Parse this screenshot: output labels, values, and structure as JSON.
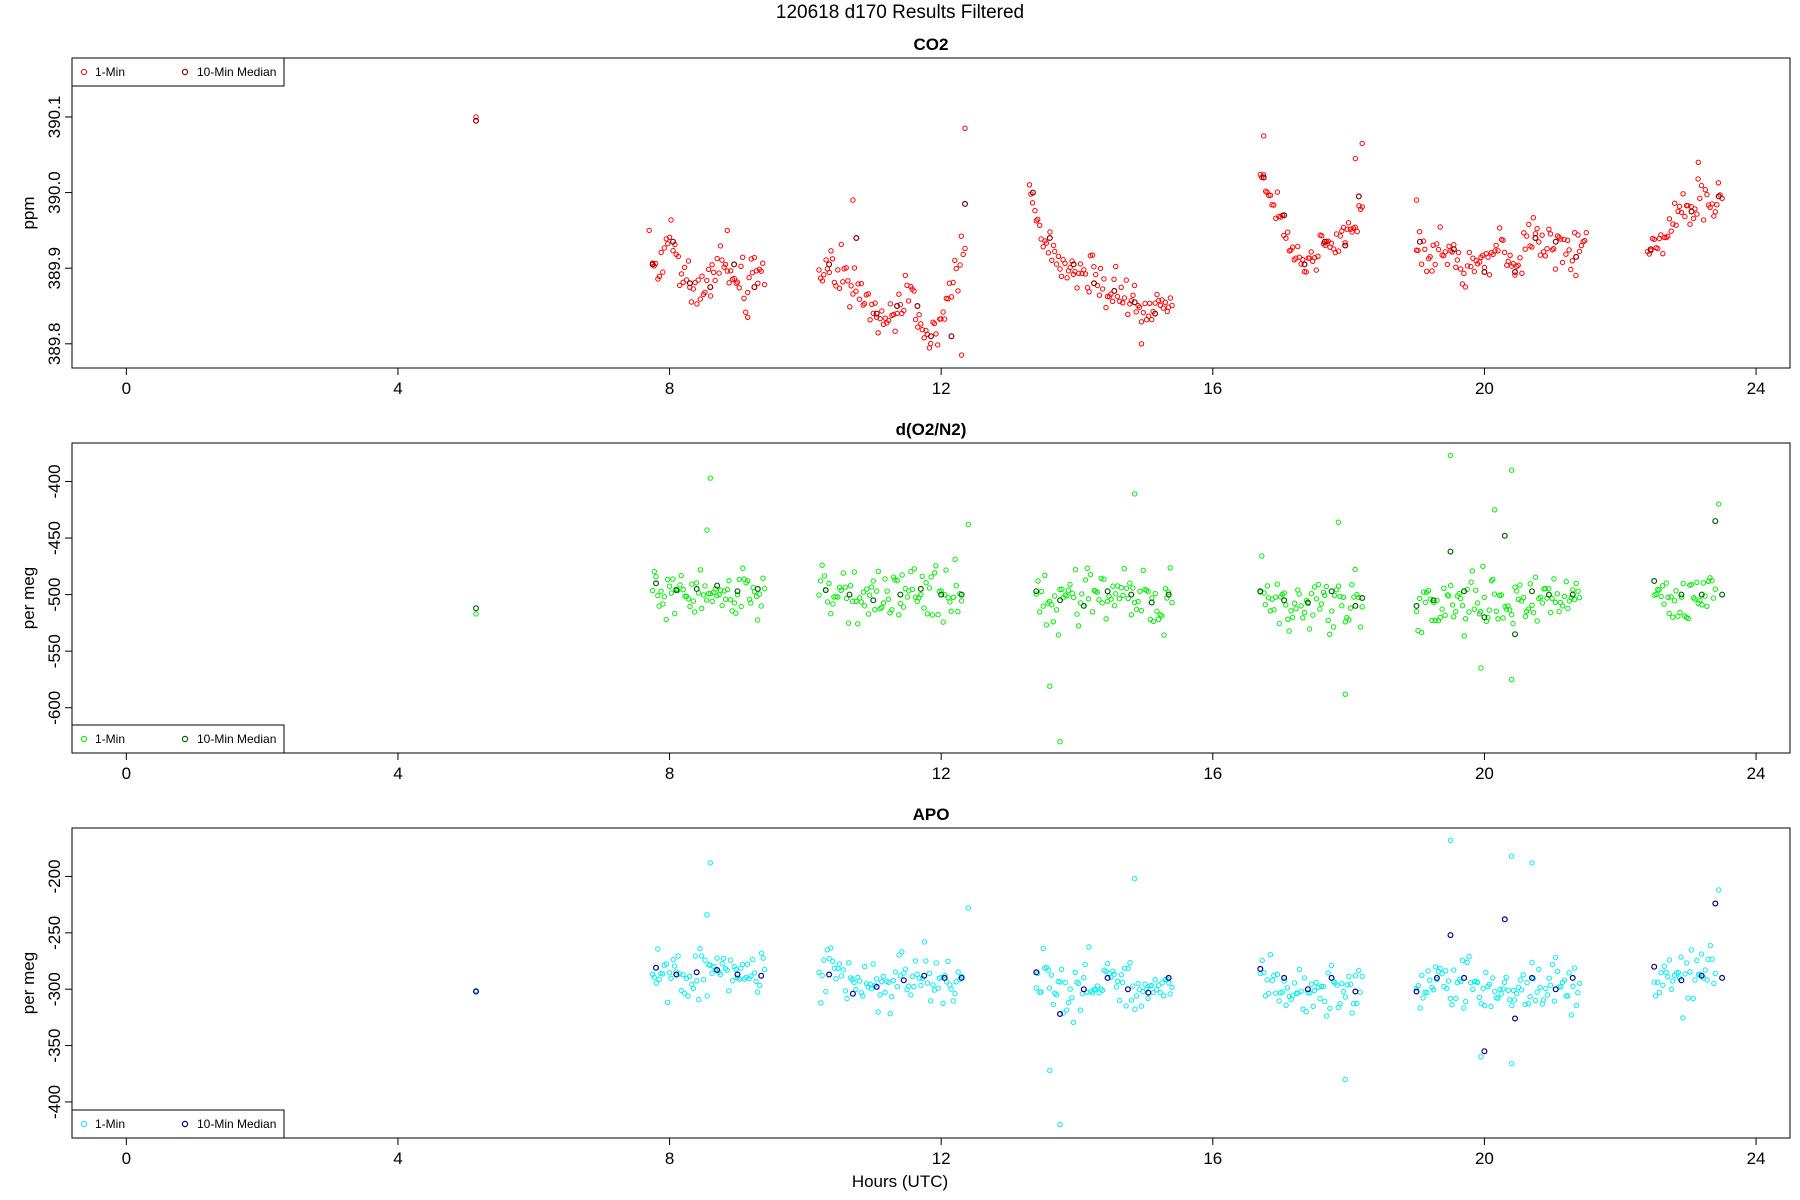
{
  "figure": {
    "title": "120618   d170   Results Filtered",
    "xlabel": "Hours (UTC)"
  },
  "chart_data": [
    {
      "type": "scatter",
      "title": "CO2",
      "xlabel": "",
      "ylabel": "ppm",
      "xlim": [
        -0.8,
        24.5
      ],
      "ylim": [
        389.768,
        390.178
      ],
      "xticks": [
        0,
        4,
        8,
        12,
        16,
        20,
        24
      ],
      "yticks": [
        389.8,
        389.9,
        390.0,
        390.1
      ],
      "ytick_labels": [
        "389.8",
        "389.9",
        "390.0",
        "390.1"
      ],
      "legend": {
        "position": "top-left",
        "entries": [
          "1-Min",
          "10-Min Median"
        ]
      },
      "grid": false,
      "colors": {
        "one_min": "#ff0000",
        "median": "#8b0000"
      },
      "anchors": [
        [
          5.15,
          390.095
        ],
        [
          7.75,
          389.905
        ],
        [
          7.85,
          389.89
        ],
        [
          8.0,
          389.94
        ],
        [
          8.2,
          389.885
        ],
        [
          8.35,
          389.87
        ],
        [
          8.5,
          389.875
        ],
        [
          8.7,
          389.91
        ],
        [
          8.85,
          389.9
        ],
        [
          9.0,
          389.885
        ],
        [
          9.15,
          389.87
        ],
        [
          9.3,
          389.895
        ],
        [
          9.4,
          389.88
        ],
        [
          10.2,
          389.9
        ],
        [
          10.4,
          389.905
        ],
        [
          10.7,
          389.875
        ],
        [
          10.85,
          389.85
        ],
        [
          11.0,
          389.84
        ],
        [
          11.2,
          389.835
        ],
        [
          11.4,
          389.85
        ],
        [
          11.6,
          389.86
        ],
        [
          11.75,
          389.815
        ],
        [
          11.9,
          389.83
        ],
        [
          12.05,
          389.84
        ],
        [
          12.2,
          389.9
        ],
        [
          12.35,
          389.92
        ],
        [
          13.3,
          390.01
        ],
        [
          13.4,
          389.97
        ],
        [
          13.55,
          389.935
        ],
        [
          13.7,
          389.915
        ],
        [
          13.9,
          389.905
        ],
        [
          14.1,
          389.9
        ],
        [
          14.3,
          389.885
        ],
        [
          14.5,
          389.87
        ],
        [
          14.7,
          389.86
        ],
        [
          14.9,
          389.85
        ],
        [
          15.1,
          389.845
        ],
        [
          15.3,
          389.855
        ],
        [
          15.4,
          389.86
        ],
        [
          16.7,
          390.02
        ],
        [
          16.85,
          390.0
        ],
        [
          17.0,
          389.97
        ],
        [
          17.15,
          389.93
        ],
        [
          17.3,
          389.905
        ],
        [
          17.5,
          389.915
        ],
        [
          17.7,
          389.93
        ],
        [
          17.9,
          389.935
        ],
        [
          18.05,
          389.935
        ],
        [
          18.2,
          389.99
        ],
        [
          19.0,
          389.935
        ],
        [
          19.2,
          389.915
        ],
        [
          19.4,
          389.925
        ],
        [
          19.6,
          389.91
        ],
        [
          19.8,
          389.9
        ],
        [
          20.0,
          389.905
        ],
        [
          20.2,
          389.93
        ],
        [
          20.4,
          389.9
        ],
        [
          20.6,
          389.925
        ],
        [
          20.8,
          389.935
        ],
        [
          21.0,
          389.93
        ],
        [
          21.2,
          389.92
        ],
        [
          21.4,
          389.92
        ],
        [
          21.5,
          389.935
        ],
        [
          22.4,
          389.925
        ],
        [
          22.7,
          389.95
        ],
        [
          22.9,
          389.975
        ],
        [
          23.1,
          389.99
        ],
        [
          23.3,
          389.985
        ],
        [
          23.5,
          389.995
        ]
      ],
      "outliers": [
        [
          18.2,
          390.065
        ],
        [
          12.35,
          390.085
        ],
        [
          12.3,
          389.785
        ],
        [
          14.95,
          389.8
        ],
        [
          16.75,
          390.075
        ],
        [
          7.7,
          389.95
        ],
        [
          10.7,
          389.99
        ],
        [
          18.1,
          390.045
        ],
        [
          23.15,
          390.04
        ],
        [
          19.0,
          389.99
        ],
        [
          8.85,
          389.95
        ],
        [
          9.15,
          389.835
        ]
      ],
      "medians": [
        [
          5.15,
          390.095
        ],
        [
          7.75,
          389.905
        ],
        [
          8.05,
          389.935
        ],
        [
          8.3,
          389.88
        ],
        [
          8.6,
          389.875
        ],
        [
          8.95,
          389.905
        ],
        [
          9.25,
          389.875
        ],
        [
          10.35,
          389.905
        ],
        [
          10.75,
          389.94
        ],
        [
          11.05,
          389.84
        ],
        [
          11.35,
          389.85
        ],
        [
          11.65,
          389.85
        ],
        [
          11.85,
          389.81
        ],
        [
          12.15,
          389.81
        ],
        [
          12.35,
          389.985
        ],
        [
          13.35,
          390.0
        ],
        [
          13.6,
          389.94
        ],
        [
          13.95,
          389.905
        ],
        [
          14.25,
          389.88
        ],
        [
          14.55,
          389.87
        ],
        [
          14.85,
          389.855
        ],
        [
          15.15,
          389.84
        ],
        [
          16.75,
          390.02
        ],
        [
          17.05,
          389.97
        ],
        [
          17.35,
          389.905
        ],
        [
          17.65,
          389.935
        ],
        [
          17.95,
          389.93
        ],
        [
          18.15,
          389.995
        ],
        [
          19.05,
          389.935
        ],
        [
          19.55,
          389.925
        ],
        [
          20.0,
          389.895
        ],
        [
          20.45,
          389.895
        ],
        [
          20.75,
          389.94
        ],
        [
          21.05,
          389.935
        ],
        [
          21.35,
          389.915
        ],
        [
          22.45,
          389.925
        ],
        [
          23.05,
          389.975
        ],
        [
          23.45,
          389.995
        ]
      ]
    },
    {
      "type": "scatter",
      "title": "d(O2/N2)",
      "xlabel": "",
      "ylabel": "per meg",
      "xlim": [
        -0.8,
        24.5
      ],
      "ylim": [
        -640,
        -366
      ],
      "xticks": [
        0,
        4,
        8,
        12,
        16,
        20,
        24
      ],
      "yticks": [
        -400,
        -450,
        -500,
        -550,
        -600
      ],
      "ytick_labels": [
        "-400",
        "-450",
        "-500",
        "-550",
        "-600"
      ],
      "legend": {
        "position": "bottom-left",
        "entries": [
          "1-Min",
          "10-Min Median"
        ]
      },
      "grid": false,
      "colors": {
        "one_min": "#00ee00",
        "median": "#006400"
      },
      "anchors": [
        [
          5.15,
          -512
        ],
        [
          7.75,
          -495
        ],
        [
          8.0,
          -500
        ],
        [
          8.25,
          -495
        ],
        [
          8.5,
          -497
        ],
        [
          8.75,
          -493
        ],
        [
          9.0,
          -500
        ],
        [
          9.25,
          -497
        ],
        [
          9.4,
          -495
        ],
        [
          10.2,
          -497
        ],
        [
          10.45,
          -500
        ],
        [
          10.8,
          -503
        ],
        [
          11.1,
          -507
        ],
        [
          11.4,
          -502
        ],
        [
          11.7,
          -500
        ],
        [
          12.0,
          -500
        ],
        [
          12.3,
          -500
        ],
        [
          13.4,
          -500
        ],
        [
          13.7,
          -512
        ],
        [
          14.0,
          -510
        ],
        [
          14.3,
          -503
        ],
        [
          14.6,
          -500
        ],
        [
          14.9,
          -505
        ],
        [
          15.2,
          -512
        ],
        [
          15.4,
          -505
        ],
        [
          16.7,
          -497
        ],
        [
          17.0,
          -505
        ],
        [
          17.3,
          -510
        ],
        [
          17.6,
          -505
        ],
        [
          17.9,
          -510
        ],
        [
          18.2,
          -500
        ],
        [
          19.0,
          -510
        ],
        [
          19.3,
          -505
        ],
        [
          19.6,
          -500
        ],
        [
          19.9,
          -505
        ],
        [
          20.2,
          -510
        ],
        [
          20.5,
          -505
        ],
        [
          20.8,
          -500
        ],
        [
          21.1,
          -505
        ],
        [
          21.4,
          -503
        ],
        [
          22.5,
          -495
        ],
        [
          22.8,
          -505
        ],
        [
          23.1,
          -500
        ],
        [
          23.4,
          -495
        ]
      ],
      "outliers": [
        [
          8.6,
          -397
        ],
        [
          8.55,
          -443
        ],
        [
          13.75,
          -630
        ],
        [
          13.6,
          -581
        ],
        [
          14.85,
          -411
        ],
        [
          19.5,
          -377
        ],
        [
          20.4,
          -390
        ],
        [
          20.15,
          -425
        ],
        [
          17.95,
          -588
        ],
        [
          23.45,
          -420
        ],
        [
          12.4,
          -438
        ],
        [
          19.95,
          -565
        ],
        [
          20.4,
          -575
        ],
        [
          17.85,
          -436
        ]
      ],
      "medians": [
        [
          5.15,
          -512
        ],
        [
          7.8,
          -490
        ],
        [
          8.1,
          -496
        ],
        [
          8.4,
          -495
        ],
        [
          8.7,
          -492
        ],
        [
          9.0,
          -497
        ],
        [
          9.3,
          -495
        ],
        [
          10.3,
          -496
        ],
        [
          10.65,
          -500
        ],
        [
          11.0,
          -505
        ],
        [
          11.4,
          -500
        ],
        [
          11.7,
          -495
        ],
        [
          12.0,
          -500
        ],
        [
          12.3,
          -500
        ],
        [
          13.4,
          -497
        ],
        [
          13.75,
          -505
        ],
        [
          14.1,
          -510
        ],
        [
          14.45,
          -497
        ],
        [
          14.8,
          -500
        ],
        [
          15.1,
          -507
        ],
        [
          15.35,
          -500
        ],
        [
          16.7,
          -497
        ],
        [
          17.05,
          -505
        ],
        [
          17.4,
          -507
        ],
        [
          17.75,
          -497
        ],
        [
          18.1,
          -510
        ],
        [
          18.2,
          -503
        ],
        [
          19.0,
          -510
        ],
        [
          19.25,
          -505
        ],
        [
          19.5,
          -462
        ],
        [
          19.7,
          -497
        ],
        [
          20.0,
          -520
        ],
        [
          20.3,
          -448
        ],
        [
          20.45,
          -535
        ],
        [
          20.7,
          -497
        ],
        [
          20.95,
          -500
        ],
        [
          21.3,
          -500
        ],
        [
          22.5,
          -488
        ],
        [
          22.9,
          -500
        ],
        [
          23.2,
          -500
        ],
        [
          23.4,
          -435
        ],
        [
          23.5,
          -500
        ]
      ]
    },
    {
      "type": "scatter",
      "title": "APO",
      "xlabel": "Hours (UTC)",
      "ylabel": "per meg",
      "xlim": [
        -0.8,
        24.5
      ],
      "ylim": [
        -432,
        -157
      ],
      "xticks": [
        0,
        4,
        8,
        12,
        16,
        20,
        24
      ],
      "yticks": [
        -200,
        -250,
        -300,
        -350,
        -400
      ],
      "ytick_labels": [
        "-200",
        "-250",
        "-300",
        "-350",
        "-400"
      ],
      "legend": {
        "position": "bottom-left",
        "entries": [
          "1-Min",
          "10-Min Median"
        ]
      },
      "grid": false,
      "colors": {
        "one_min": "#00eeee",
        "median": "#00008b"
      },
      "anchors": [
        [
          5.15,
          -302
        ],
        [
          7.75,
          -285
        ],
        [
          8.0,
          -290
        ],
        [
          8.25,
          -285
        ],
        [
          8.5,
          -288
        ],
        [
          8.75,
          -283
        ],
        [
          9.0,
          -290
        ],
        [
          9.25,
          -287
        ],
        [
          9.4,
          -285
        ],
        [
          10.2,
          -288
        ],
        [
          10.45,
          -292
        ],
        [
          10.8,
          -298
        ],
        [
          11.1,
          -302
        ],
        [
          11.4,
          -293
        ],
        [
          11.7,
          -288
        ],
        [
          12.0,
          -290
        ],
        [
          12.3,
          -290
        ],
        [
          13.4,
          -290
        ],
        [
          13.7,
          -305
        ],
        [
          14.0,
          -300
        ],
        [
          14.3,
          -293
        ],
        [
          14.6,
          -288
        ],
        [
          14.9,
          -300
        ],
        [
          15.2,
          -305
        ],
        [
          15.4,
          -300
        ],
        [
          16.7,
          -287
        ],
        [
          17.0,
          -297
        ],
        [
          17.3,
          -300
        ],
        [
          17.6,
          -297
        ],
        [
          17.9,
          -300
        ],
        [
          18.2,
          -295
        ],
        [
          19.0,
          -300
        ],
        [
          19.3,
          -295
        ],
        [
          19.6,
          -290
        ],
        [
          19.9,
          -297
        ],
        [
          20.2,
          -305
        ],
        [
          20.5,
          -297
        ],
        [
          20.8,
          -290
        ],
        [
          21.1,
          -297
        ],
        [
          21.4,
          -295
        ],
        [
          22.5,
          -285
        ],
        [
          22.8,
          -295
        ],
        [
          23.1,
          -290
        ],
        [
          23.4,
          -285
        ]
      ],
      "outliers": [
        [
          8.6,
          -188
        ],
        [
          13.75,
          -420
        ],
        [
          13.6,
          -372
        ],
        [
          14.85,
          -202
        ],
        [
          19.5,
          -168
        ],
        [
          20.4,
          -182
        ],
        [
          17.95,
          -380
        ],
        [
          23.45,
          -212
        ],
        [
          12.4,
          -228
        ],
        [
          20.4,
          -366
        ],
        [
          19.95,
          -360
        ],
        [
          20.7,
          -188
        ],
        [
          8.55,
          -234
        ]
      ],
      "medians": [
        [
          5.15,
          -302
        ],
        [
          7.8,
          -281
        ],
        [
          8.1,
          -287
        ],
        [
          8.4,
          -285
        ],
        [
          8.7,
          -283
        ],
        [
          9.0,
          -287
        ],
        [
          9.35,
          -288
        ],
        [
          10.35,
          -287
        ],
        [
          10.7,
          -304
        ],
        [
          11.05,
          -298
        ],
        [
          11.45,
          -292
        ],
        [
          11.75,
          -288
        ],
        [
          12.05,
          -290
        ],
        [
          12.3,
          -290
        ],
        [
          13.4,
          -285
        ],
        [
          13.75,
          -322
        ],
        [
          14.1,
          -300
        ],
        [
          14.45,
          -290
        ],
        [
          14.75,
          -300
        ],
        [
          15.05,
          -303
        ],
        [
          15.35,
          -290
        ],
        [
          16.7,
          -282
        ],
        [
          17.05,
          -290
        ],
        [
          17.4,
          -300
        ],
        [
          17.75,
          -290
        ],
        [
          18.1,
          -302
        ],
        [
          19.0,
          -302
        ],
        [
          19.3,
          -290
        ],
        [
          19.5,
          -252
        ],
        [
          19.7,
          -290
        ],
        [
          20.0,
          -355
        ],
        [
          20.3,
          -238
        ],
        [
          20.45,
          -326
        ],
        [
          20.7,
          -290
        ],
        [
          21.05,
          -300
        ],
        [
          21.3,
          -290
        ],
        [
          22.5,
          -280
        ],
        [
          22.9,
          -292
        ],
        [
          23.2,
          -288
        ],
        [
          23.4,
          -224
        ],
        [
          23.5,
          -290
        ]
      ]
    }
  ]
}
